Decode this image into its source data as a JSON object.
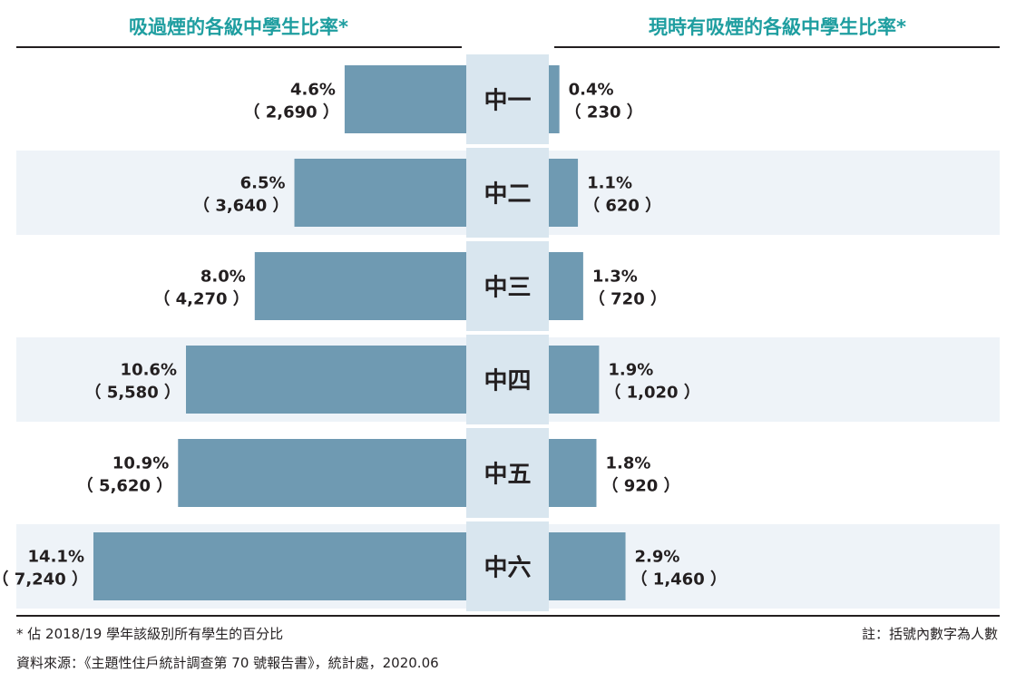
{
  "chart_data": {
    "type": "bar",
    "layout": "butterfly",
    "categories": [
      "中一",
      "中二",
      "中三",
      "中四",
      "中五",
      "中六"
    ],
    "series": [
      {
        "name": "吸過煙的各級中學生比率*",
        "values": [
          4.6,
          6.5,
          8.0,
          10.6,
          10.9,
          14.1
        ],
        "value_labels": [
          "4.6%",
          "6.5%",
          "8.0%",
          "10.6%",
          "10.9%",
          "14.1%"
        ],
        "counts": [
          "（ 2,690 ）",
          "（ 3,640 ）",
          "（ 4,270 ）",
          "（ 5,580 ）",
          "（ 5,620 ）",
          "（ 7,240 ）"
        ]
      },
      {
        "name": "現時有吸煙的各級中學生比率*",
        "values": [
          0.4,
          1.1,
          1.3,
          1.9,
          1.8,
          2.9
        ],
        "value_labels": [
          "0.4%",
          "1.1%",
          "1.3%",
          "1.9%",
          "1.8%",
          "2.9%"
        ],
        "counts": [
          "（ 230 ）",
          "（ 620 ）",
          "（ 720 ）",
          "（ 1,020 ）",
          "（ 920 ）",
          "（ 1,460 ）"
        ]
      }
    ],
    "colors": {
      "bar": "#6f9ab2",
      "title": "#1f9ea0",
      "band": "#eef3f8",
      "center_label_bg": "#d9e6ef",
      "text": "#231f20"
    }
  },
  "footnotes": {
    "asterisk": "* 佔 2018/19 學年該級別所有學生的百分比",
    "note": "註：括號內數字為人數",
    "source": "資料來源：《主題性住戶統計調查第 70 號報告書》，統計處，2020.06"
  }
}
